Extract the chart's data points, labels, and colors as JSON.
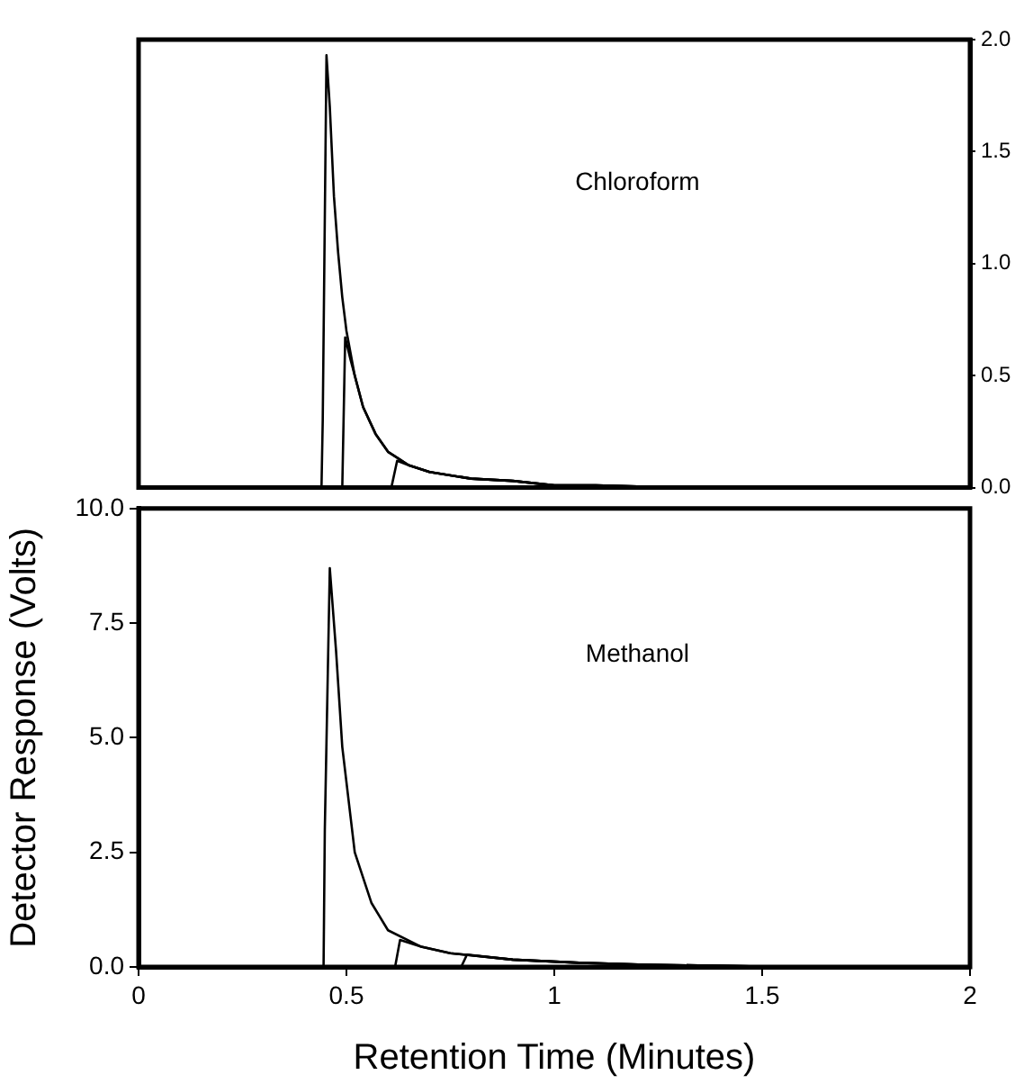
{
  "chart_data": [
    {
      "type": "line",
      "xlim": [
        0,
        2
      ],
      "y2lim": [
        0,
        2
      ],
      "y2ticks": [
        {
          "value": 0,
          "label": "0.0"
        },
        {
          "value": 0.5,
          "label": "0.5"
        },
        {
          "value": 1,
          "label": "1.0"
        },
        {
          "value": 1.5,
          "label": "1.5"
        },
        {
          "value": 2,
          "label": "2.0"
        }
      ],
      "tick_labels": "y2",
      "grid": false,
      "legend": false,
      "marker": "none",
      "annotations": [
        "Chloroform"
      ],
      "series": [
        {
          "axis": "y2",
          "color": "#000000",
          "x": [
            0,
            0.44,
            0.443,
            0.452,
            0.46,
            0.47,
            0.48,
            0.49,
            0.5,
            0.52,
            0.54,
            0.57,
            0.6,
            0.65,
            0.7,
            0.8,
            0.9,
            1.0,
            1.1,
            1.3,
            2.0
          ],
          "values": [
            0,
            0,
            0.3,
            1.93,
            1.7,
            1.3,
            1.05,
            0.85,
            0.7,
            0.5,
            0.36,
            0.24,
            0.16,
            0.1,
            0.07,
            0.04,
            0.03,
            0.01,
            0.01,
            0,
            0
          ]
        },
        {
          "axis": "y2",
          "color": "#000000",
          "x": [
            0,
            0.49,
            0.497,
            0.51,
            0.54,
            0.57,
            0.6,
            0.65,
            0.7,
            0.8,
            0.9,
            1.0,
            1.1,
            1.3,
            2.0
          ],
          "values": [
            0,
            0,
            0.67,
            0.57,
            0.36,
            0.24,
            0.16,
            0.1,
            0.07,
            0.04,
            0.03,
            0.01,
            0.01,
            0,
            0
          ]
        },
        {
          "axis": "y2",
          "color": "#000000",
          "x": [
            0,
            0.608,
            0.622,
            0.65,
            0.7,
            0.8,
            0.9,
            1.0,
            1.1,
            1.3,
            2.0
          ],
          "values": [
            0,
            0,
            0.12,
            0.1,
            0.07,
            0.04,
            0.03,
            0.01,
            0.01,
            0,
            0
          ]
        }
      ]
    },
    {
      "type": "line",
      "xlabel": "Retention Time (Minutes)",
      "ylabel": "Detector Response (Volts)",
      "xlim": [
        0,
        2
      ],
      "xticks": [
        0,
        0.5,
        1,
        1.5,
        2
      ],
      "ylim": [
        0,
        10
      ],
      "yticks": [
        {
          "value": 0,
          "label": "0.0"
        },
        {
          "value": 2.5,
          "label": "2.5"
        },
        {
          "value": 5,
          "label": "5.0"
        },
        {
          "value": 7.5,
          "label": "7.5"
        },
        {
          "value": 10,
          "label": "10.0"
        }
      ],
      "grid": false,
      "legend": false,
      "marker": "none",
      "annotations": [
        "Methanol"
      ],
      "series": [
        {
          "color": "#000000",
          "x": [
            0,
            0.445,
            0.448,
            0.46,
            0.475,
            0.49,
            0.52,
            0.56,
            0.6,
            0.68,
            0.75,
            0.9,
            1.06,
            1.22,
            1.5,
            1.8,
            2.0
          ],
          "values": [
            0,
            0,
            3,
            8.7,
            6.9,
            4.8,
            2.5,
            1.4,
            0.8,
            0.44,
            0.3,
            0.16,
            0.09,
            0.05,
            0.01,
            0,
            0
          ]
        },
        {
          "color": "#000000",
          "x": [
            0,
            0.617,
            0.629,
            0.68,
            0.75,
            0.9,
            1.06,
            1.22,
            1.5,
            1.8,
            2.0
          ],
          "values": [
            0,
            0,
            0.59,
            0.44,
            0.3,
            0.16,
            0.09,
            0.05,
            0.01,
            0,
            0
          ]
        },
        {
          "color": "#000000",
          "x": [
            0,
            0.776,
            0.79,
            0.9,
            1.06,
            1.22,
            1.5,
            1.8,
            2.0
          ],
          "values": [
            0,
            0,
            0.27,
            0.16,
            0.09,
            0.05,
            0.01,
            0,
            0
          ]
        }
      ]
    }
  ]
}
